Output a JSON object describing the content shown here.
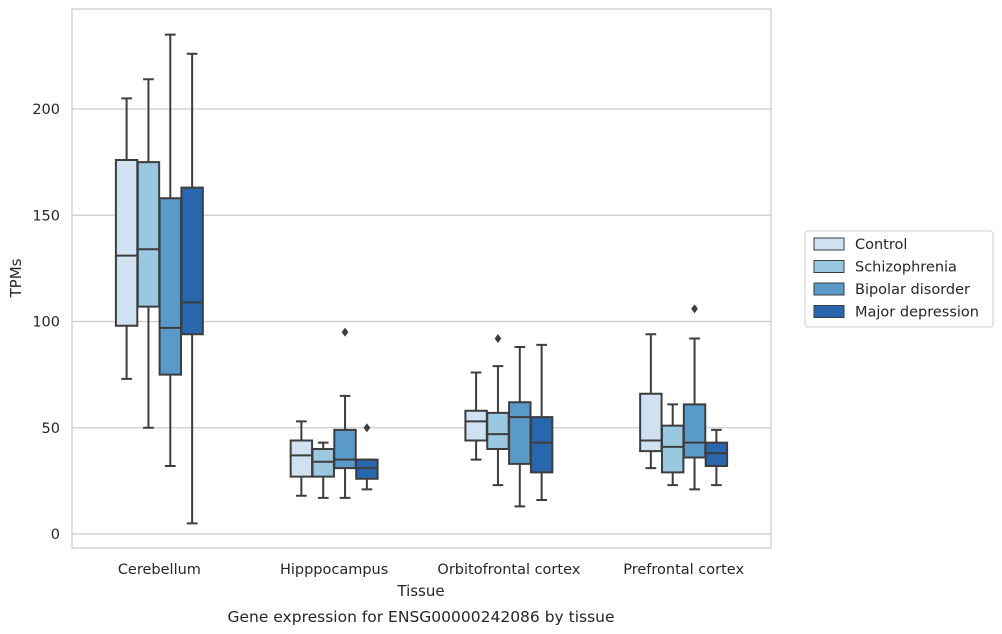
{
  "chart_data": {
    "type": "box",
    "title": "",
    "caption": "Gene expression for ENSG00000242086 by tissue",
    "xlabel": "Tissue",
    "ylabel": "TPMs",
    "ylim": [
      -5,
      248
    ],
    "yticks": [
      0,
      50,
      100,
      150,
      200
    ],
    "grid": "horizontal",
    "legend_position": "right",
    "categories": [
      "Cerebellum",
      "Hipppocampus",
      "Orbitofrontal cortex",
      "Prefrontal cortex"
    ],
    "series": [
      {
        "name": "Control",
        "color": "#d0e1f2",
        "boxes": [
          {
            "whisker_low": 73,
            "q1": 98,
            "median": 131,
            "q3": 176,
            "whisker_high": 205,
            "outliers": []
          },
          {
            "whisker_low": 18,
            "q1": 27,
            "median": 37,
            "q3": 44,
            "whisker_high": 53,
            "outliers": []
          },
          {
            "whisker_low": 35,
            "q1": 44,
            "median": 53,
            "q3": 58,
            "whisker_high": 76,
            "outliers": []
          },
          {
            "whisker_low": 31,
            "q1": 39,
            "median": 44,
            "q3": 66,
            "whisker_high": 94,
            "outliers": []
          }
        ]
      },
      {
        "name": "Schizophrenia",
        "color": "#9ac8e0",
        "boxes": [
          {
            "whisker_low": 50,
            "q1": 107,
            "median": 134,
            "q3": 175,
            "whisker_high": 214,
            "outliers": []
          },
          {
            "whisker_low": 17,
            "q1": 27,
            "median": 34,
            "q3": 40,
            "whisker_high": 43,
            "outliers": []
          },
          {
            "whisker_low": 23,
            "q1": 40,
            "median": 47,
            "q3": 57,
            "whisker_high": 79,
            "outliers": [
              92
            ]
          },
          {
            "whisker_low": 23,
            "q1": 29,
            "median": 41,
            "q3": 51,
            "whisker_high": 61,
            "outliers": []
          }
        ]
      },
      {
        "name": "Bipolar disorder",
        "color": "#5a9ac9",
        "boxes": [
          {
            "whisker_low": 32,
            "q1": 75,
            "median": 97,
            "q3": 158,
            "whisker_high": 235,
            "outliers": []
          },
          {
            "whisker_low": 17,
            "q1": 31,
            "median": 35,
            "q3": 49,
            "whisker_high": 65,
            "outliers": [
              95
            ]
          },
          {
            "whisker_low": 13,
            "q1": 33,
            "median": 55,
            "q3": 62,
            "whisker_high": 88,
            "outliers": []
          },
          {
            "whisker_low": 21,
            "q1": 36,
            "median": 43,
            "q3": 61,
            "whisker_high": 92,
            "outliers": [
              106
            ]
          }
        ]
      },
      {
        "name": "Major depression",
        "color": "#2867ad",
        "boxes": [
          {
            "whisker_low": 5,
            "q1": 94,
            "median": 109,
            "q3": 163,
            "whisker_high": 226,
            "outliers": []
          },
          {
            "whisker_low": 21,
            "q1": 26,
            "median": 31,
            "q3": 35,
            "whisker_high": 35,
            "outliers": [
              50
            ]
          },
          {
            "whisker_low": 16,
            "q1": 29,
            "median": 43,
            "q3": 55,
            "whisker_high": 89,
            "outliers": []
          },
          {
            "whisker_low": 23,
            "q1": 32,
            "median": 38,
            "q3": 43,
            "whisker_high": 49,
            "outliers": []
          }
        ]
      }
    ]
  }
}
